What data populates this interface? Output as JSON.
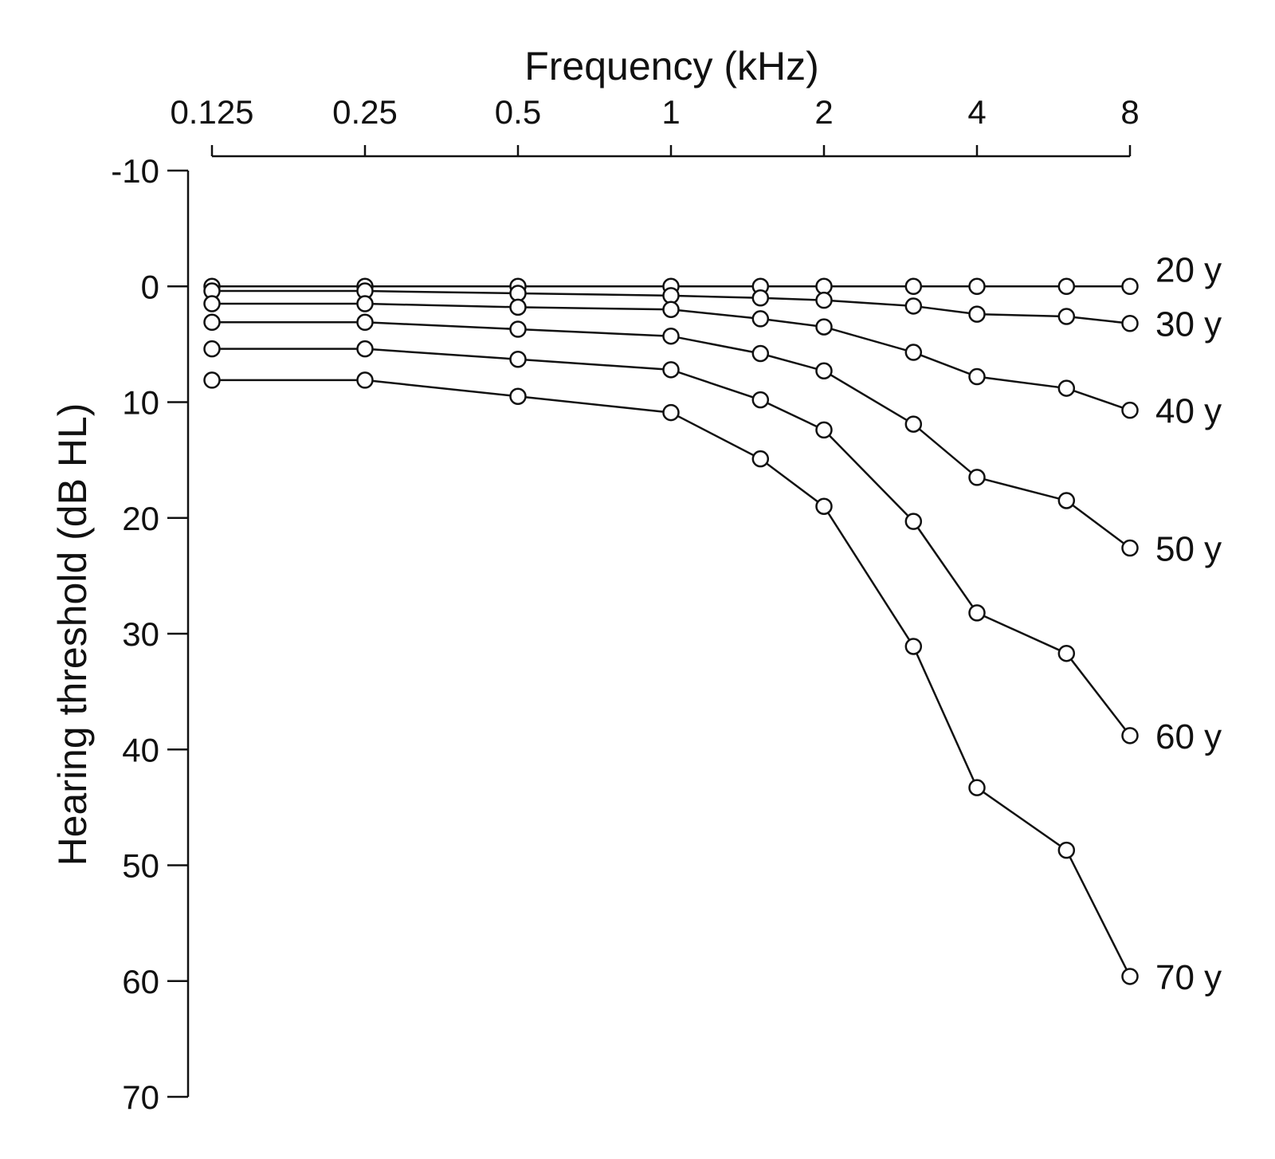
{
  "chart_data": {
    "type": "line",
    "xlabel": "Frequency (kHz)",
    "ylabel": "Hearing threshold (dB HL)",
    "x_scale": "log2",
    "x_axis_position": "top",
    "y_inverted": true,
    "xlim": [
      0.125,
      8
    ],
    "ylim": [
      -10,
      70
    ],
    "x_ticks": [
      0.125,
      0.25,
      0.5,
      1,
      2,
      4,
      8
    ],
    "x_tick_labels": [
      "0.125",
      "0.25",
      "0.5",
      "1",
      "2",
      "4",
      "8"
    ],
    "y_ticks": [
      -10,
      0,
      10,
      20,
      30,
      40,
      50,
      60,
      70
    ],
    "y_tick_labels": [
      "-10",
      "0",
      "10",
      "20",
      "30",
      "40",
      "50",
      "60",
      "70"
    ],
    "grid": false,
    "x": [
      0.125,
      0.25,
      0.5,
      1,
      1.5,
      2,
      3,
      4,
      6,
      8
    ],
    "series": [
      {
        "name": "20 y",
        "values": [
          0,
          0,
          0,
          0,
          0,
          0,
          0,
          0,
          0,
          0
        ]
      },
      {
        "name": "30 y",
        "values": [
          0.4,
          0.4,
          0.6,
          0.8,
          1.0,
          1.2,
          1.7,
          2.4,
          2.6,
          3.2
        ]
      },
      {
        "name": "40 y",
        "values": [
          1.5,
          1.5,
          1.8,
          2.0,
          2.8,
          3.5,
          5.7,
          7.8,
          8.8,
          10.7
        ]
      },
      {
        "name": "50 y",
        "values": [
          3.1,
          3.1,
          3.7,
          4.3,
          5.8,
          7.3,
          11.9,
          16.5,
          18.5,
          22.6
        ]
      },
      {
        "name": "60 y",
        "values": [
          5.4,
          5.4,
          6.3,
          7.2,
          9.8,
          12.4,
          20.3,
          28.2,
          31.7,
          38.8
        ]
      },
      {
        "name": "70 y",
        "values": [
          8.1,
          8.1,
          9.5,
          10.9,
          14.9,
          19.0,
          31.1,
          43.3,
          48.7,
          59.6
        ]
      }
    ]
  }
}
